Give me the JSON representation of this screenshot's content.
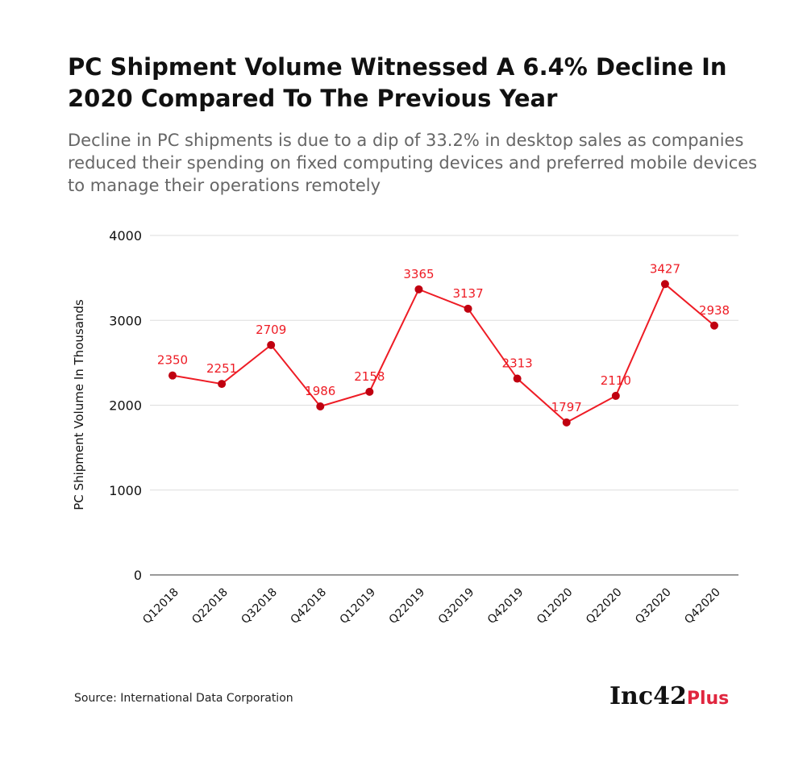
{
  "title": "PC Shipment Volume Witnessed A 6.4% Decline In 2020 Compared To The Previous Year",
  "subtitle": "Decline in PC shipments is due to a dip of 33.2% in desktop sales as companies reduced their spending on fixed computing devices and preferred mobile devices to manage their operations remotely",
  "source": "Source: International Data Corporation",
  "logo": {
    "main": "Inc42",
    "suffix": "Plus"
  },
  "colors": {
    "line": "#ee1c25",
    "marker": "#c00010",
    "grid": "#dddddd"
  },
  "chart_data": {
    "type": "line",
    "categories": [
      "Q12018",
      "Q22018",
      "Q32018",
      "Q42018",
      "Q12019",
      "Q22019",
      "Q32019",
      "Q42019",
      "Q12020",
      "Q22020",
      "Q32020",
      "Q42020"
    ],
    "values": [
      2350,
      2251,
      2709,
      1986,
      2158,
      3365,
      3137,
      2313,
      1797,
      2110,
      3427,
      2938
    ],
    "ylabel": "PC Shipment Volume In Thousands",
    "xlabel": "",
    "ylim": [
      0,
      4000
    ],
    "yticks": [
      0,
      1000,
      2000,
      3000,
      4000
    ],
    "grid": true,
    "data_labels": true
  }
}
